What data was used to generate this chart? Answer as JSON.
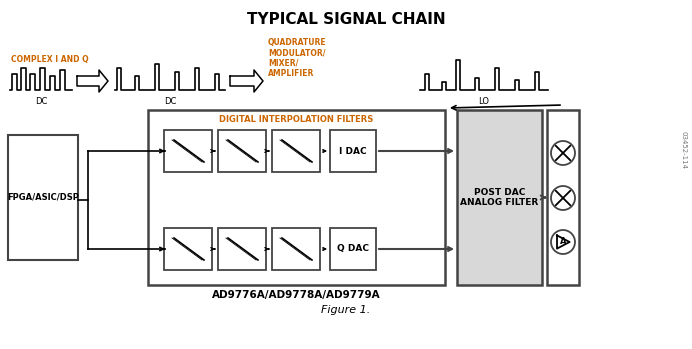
{
  "title": "TYPICAL SIGNAL CHAIN",
  "bg_color": "#ffffff",
  "black": "#000000",
  "orange_color": "#cc6600",
  "dark_gray": "#444444",
  "light_gray": "#dddddd",
  "figure_caption": "Figure 1.",
  "watermark": "03452-114",
  "chip_label": "AD9776A/AD9778A/AD9779A",
  "fpga_label": "FPGA/ASIC/DSP",
  "idac_label": "I DAC",
  "qdac_label": "Q DAC",
  "postdac_label": "POST DAC\nANALOG FILTER",
  "dif_label": "DIGITAL INTERPOLATION FILTERS",
  "complex_label": "COMPLEX I AND Q",
  "dc_label1": "DC",
  "dc_label2": "DC",
  "lo_label": "LO",
  "quad_label": "QUADRATURE\nMODULATOR/\nMIXER/\nAMPLIFIER"
}
